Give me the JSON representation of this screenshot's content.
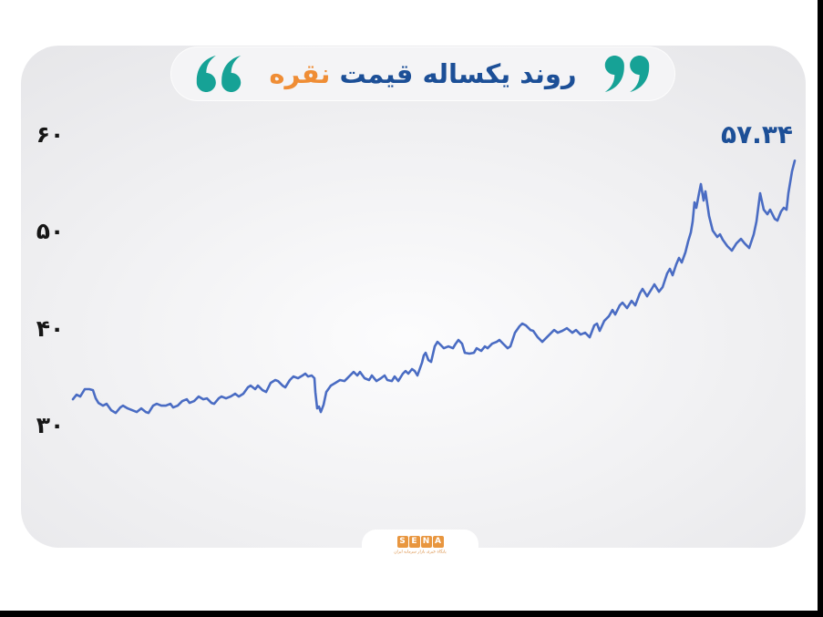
{
  "header": {
    "title_main": "روند یکساله قیمت",
    "title_highlight": "نقره",
    "quote_color": "#16a296",
    "title_color": "#1c4f97",
    "highlight_color": "#ef8d35"
  },
  "footer": {
    "logo_letters": [
      "S",
      "E",
      "N",
      "A"
    ],
    "logo_caption": "پایگاه خبری بازار سرمایه ایران",
    "logo_color": "#e8963f"
  },
  "chart_data": {
    "type": "line",
    "title": "روند یکساله قیمت نقره",
    "xlabel": "",
    "ylabel": "",
    "grid": false,
    "legend": false,
    "line_color": "#4a6cc3",
    "ylim": [
      28,
      62
    ],
    "last_value": 57.34,
    "last_value_label": "۵۷.۳۴",
    "y_axis_ticks": [
      {
        "label": "۶۰",
        "value": 60
      },
      {
        "label": "۵۰",
        "value": 50
      },
      {
        "label": "۴۰",
        "value": 40
      },
      {
        "label": "۳۰",
        "value": 30
      }
    ],
    "series": [
      {
        "name": "قیمت نقره",
        "points": [
          [
            80,
            32.71
          ],
          [
            84,
            33.18
          ],
          [
            88,
            32.99
          ],
          [
            93,
            33.75
          ],
          [
            98,
            33.75
          ],
          [
            102,
            33.65
          ],
          [
            105,
            32.8
          ],
          [
            108,
            32.33
          ],
          [
            113,
            32.05
          ],
          [
            117,
            32.24
          ],
          [
            122,
            31.58
          ],
          [
            127,
            31.3
          ],
          [
            132,
            31.86
          ],
          [
            135,
            32.05
          ],
          [
            140,
            31.77
          ],
          [
            145,
            31.58
          ],
          [
            150,
            31.39
          ],
          [
            155,
            31.77
          ],
          [
            160,
            31.39
          ],
          [
            163,
            31.3
          ],
          [
            168,
            32.05
          ],
          [
            172,
            32.24
          ],
          [
            177,
            32.05
          ],
          [
            182,
            32.05
          ],
          [
            187,
            32.24
          ],
          [
            190,
            31.86
          ],
          [
            195,
            32.05
          ],
          [
            200,
            32.52
          ],
          [
            205,
            32.71
          ],
          [
            208,
            32.33
          ],
          [
            213,
            32.52
          ],
          [
            218,
            32.99
          ],
          [
            223,
            32.71
          ],
          [
            227,
            32.8
          ],
          [
            232,
            32.33
          ],
          [
            235,
            32.24
          ],
          [
            240,
            32.8
          ],
          [
            243,
            32.99
          ],
          [
            248,
            32.8
          ],
          [
            253,
            32.99
          ],
          [
            258,
            33.28
          ],
          [
            262,
            32.99
          ],
          [
            267,
            33.28
          ],
          [
            272,
            33.94
          ],
          [
            275,
            34.12
          ],
          [
            280,
            33.75
          ],
          [
            283,
            34.12
          ],
          [
            288,
            33.65
          ],
          [
            292,
            33.46
          ],
          [
            297,
            34.4
          ],
          [
            302,
            34.69
          ],
          [
            305,
            34.59
          ],
          [
            310,
            34.12
          ],
          [
            313,
            33.94
          ],
          [
            318,
            34.69
          ],
          [
            322,
            35.06
          ],
          [
            327,
            34.88
          ],
          [
            332,
            35.16
          ],
          [
            335,
            35.35
          ],
          [
            338,
            35.06
          ],
          [
            342,
            35.16
          ],
          [
            345,
            34.88
          ],
          [
            346,
            33.46
          ],
          [
            348,
            31.77
          ],
          [
            350,
            31.96
          ],
          [
            352,
            31.39
          ],
          [
            355,
            32.14
          ],
          [
            358,
            33.46
          ],
          [
            363,
            34.12
          ],
          [
            368,
            34.4
          ],
          [
            373,
            34.69
          ],
          [
            378,
            34.59
          ],
          [
            383,
            35.06
          ],
          [
            388,
            35.53
          ],
          [
            392,
            35.16
          ],
          [
            395,
            35.53
          ],
          [
            400,
            34.88
          ],
          [
            405,
            34.69
          ],
          [
            408,
            35.16
          ],
          [
            413,
            34.59
          ],
          [
            418,
            34.88
          ],
          [
            422,
            35.16
          ],
          [
            425,
            34.69
          ],
          [
            430,
            34.59
          ],
          [
            433,
            35.06
          ],
          [
            437,
            34.59
          ],
          [
            442,
            35.35
          ],
          [
            445,
            35.63
          ],
          [
            448,
            35.35
          ],
          [
            452,
            35.82
          ],
          [
            455,
            35.63
          ],
          [
            458,
            35.16
          ],
          [
            463,
            36.48
          ],
          [
            465,
            37.23
          ],
          [
            467,
            37.51
          ],
          [
            470,
            36.76
          ],
          [
            473,
            36.57
          ],
          [
            477,
            38.17
          ],
          [
            480,
            38.64
          ],
          [
            483,
            38.36
          ],
          [
            487,
            37.98
          ],
          [
            492,
            38.17
          ],
          [
            497,
            37.98
          ],
          [
            500,
            38.45
          ],
          [
            503,
            38.83
          ],
          [
            507,
            38.45
          ],
          [
            510,
            37.51
          ],
          [
            515,
            37.42
          ],
          [
            520,
            37.51
          ],
          [
            523,
            37.98
          ],
          [
            528,
            37.7
          ],
          [
            532,
            38.17
          ],
          [
            535,
            37.98
          ],
          [
            540,
            38.45
          ],
          [
            545,
            38.64
          ],
          [
            548,
            38.83
          ],
          [
            552,
            38.45
          ],
          [
            557,
            37.98
          ],
          [
            560,
            38.17
          ],
          [
            565,
            39.58
          ],
          [
            570,
            40.24
          ],
          [
            573,
            40.52
          ],
          [
            577,
            40.33
          ],
          [
            582,
            39.86
          ],
          [
            585,
            39.77
          ],
          [
            590,
            39.11
          ],
          [
            595,
            38.64
          ],
          [
            600,
            39.11
          ],
          [
            605,
            39.58
          ],
          [
            608,
            39.86
          ],
          [
            612,
            39.58
          ],
          [
            617,
            39.77
          ],
          [
            622,
            40.05
          ],
          [
            628,
            39.58
          ],
          [
            632,
            39.86
          ],
          [
            637,
            39.39
          ],
          [
            642,
            39.58
          ],
          [
            647,
            39.11
          ],
          [
            652,
            40.33
          ],
          [
            655,
            40.52
          ],
          [
            658,
            39.77
          ],
          [
            663,
            40.8
          ],
          [
            668,
            41.27
          ],
          [
            672,
            41.93
          ],
          [
            675,
            41.46
          ],
          [
            680,
            42.4
          ],
          [
            683,
            42.68
          ],
          [
            688,
            42.12
          ],
          [
            693,
            42.87
          ],
          [
            697,
            42.4
          ],
          [
            702,
            43.63
          ],
          [
            705,
            44.1
          ],
          [
            710,
            43.34
          ],
          [
            715,
            44.1
          ],
          [
            718,
            44.57
          ],
          [
            723,
            43.81
          ],
          [
            727,
            44.28
          ],
          [
            732,
            45.7
          ],
          [
            735,
            46.17
          ],
          [
            738,
            45.51
          ],
          [
            742,
            46.64
          ],
          [
            745,
            47.3
          ],
          [
            748,
            46.83
          ],
          [
            752,
            47.86
          ],
          [
            755,
            48.99
          ],
          [
            758,
            49.93
          ],
          [
            760,
            51.06
          ],
          [
            762,
            53.04
          ],
          [
            764,
            52.47
          ],
          [
            767,
            53.98
          ],
          [
            769,
            54.92
          ],
          [
            772,
            53.23
          ],
          [
            774,
            54.17
          ],
          [
            778,
            51.63
          ],
          [
            782,
            50.12
          ],
          [
            787,
            49.46
          ],
          [
            790,
            49.74
          ],
          [
            793,
            49.18
          ],
          [
            798,
            48.52
          ],
          [
            803,
            48.05
          ],
          [
            808,
            48.8
          ],
          [
            813,
            49.27
          ],
          [
            817,
            48.8
          ],
          [
            822,
            48.33
          ],
          [
            827,
            49.74
          ],
          [
            830,
            51.06
          ],
          [
            834,
            53.98
          ],
          [
            838,
            52.28
          ],
          [
            842,
            51.81
          ],
          [
            845,
            52.28
          ],
          [
            850,
            51.34
          ],
          [
            853,
            51.16
          ],
          [
            857,
            52.1
          ],
          [
            860,
            52.47
          ],
          [
            863,
            52.28
          ],
          [
            865,
            53.98
          ],
          [
            867,
            55.11
          ],
          [
            869,
            56.24
          ],
          [
            872,
            57.34
          ]
        ]
      }
    ]
  }
}
